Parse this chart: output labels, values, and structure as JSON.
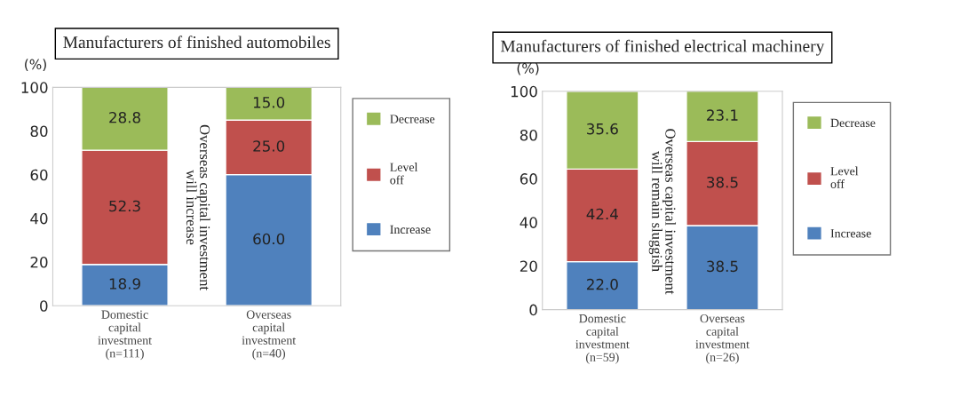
{
  "chart_data": [
    {
      "type": "bar",
      "title": "Manufacturers of finished automobiles",
      "ylabel": "(%)",
      "stacked": true,
      "legend": "right",
      "grid": false,
      "categories": [
        "Domestic\ncapital\ninvestment\n(n=111)",
        "Overseas\ncapital\ninvestment\n(n=40)"
      ],
      "series": [
        {
          "name": "Increase",
          "color": "#4f81bd",
          "values": [
            18.9,
            60.0
          ],
          "value_labels": [
            "18.9",
            "60.0"
          ]
        },
        {
          "name": "Level\noff",
          "color": "#c0504d",
          "values": [
            52.3,
            25.0
          ],
          "value_labels": [
            "52.3",
            "25.0"
          ]
        },
        {
          "name": "Decrease",
          "color": "#9bbb59",
          "values": [
            28.8,
            15.0
          ],
          "value_labels": [
            "28.8",
            "15.0"
          ]
        }
      ],
      "ylim": [
        0,
        100
      ],
      "yticks": [
        0,
        20,
        40,
        60,
        80,
        100
      ],
      "annotations": [
        "Overseas capital investment will increase"
      ]
    },
    {
      "type": "bar",
      "title": "Manufacturers of finished electrical machinery",
      "ylabel": "(%)",
      "stacked": true,
      "legend": "right",
      "grid": false,
      "categories": [
        "Domestic\ncapital\ninvestment\n(n=59)",
        "Overseas\ncapital\ninvestment\n(n=26)"
      ],
      "series": [
        {
          "name": "Increase",
          "color": "#4f81bd",
          "values": [
            22.0,
            38.5
          ],
          "value_labels": [
            "22.0",
            "38.5"
          ]
        },
        {
          "name": "Level\noff",
          "color": "#c0504d",
          "values": [
            42.4,
            38.5
          ],
          "value_labels": [
            "42.4",
            "38.5"
          ]
        },
        {
          "name": "Decrease",
          "color": "#9bbb59",
          "values": [
            35.6,
            23.1
          ],
          "value_labels": [
            "35.6",
            "23.1"
          ]
        }
      ],
      "ylim": [
        0,
        100
      ],
      "yticks": [
        0,
        20,
        40,
        60,
        80,
        100
      ],
      "annotations": [
        "Overseas capital investment will remain sluggish"
      ]
    }
  ]
}
